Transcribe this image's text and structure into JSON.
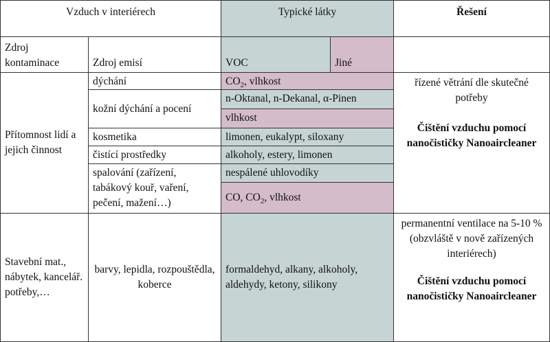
{
  "header": {
    "col1": "Vzduch v interiérech",
    "col2": "Typické látky",
    "col3": "Řešení"
  },
  "subheader": {
    "source_contamination": "Zdroj kontaminace",
    "source_emissions": "Zdroj emisí",
    "voc": "VOC",
    "other": "Jiné"
  },
  "group1": {
    "source": "Přítomnost lidí a jejich činnost",
    "rows": [
      {
        "emission": "dýchání",
        "substance_pre": "CO",
        "substance_sub": "2",
        "substance_post": ", vlhkost"
      },
      {
        "emission": "kožní dýchání a pocení",
        "substance_a": "n-Oktanal, n-Dekanal, α-Pinen",
        "substance_b": "vlhkost"
      },
      {
        "emission": "kosmetika",
        "substance": "limonen, eukalypt, siloxany"
      },
      {
        "emission": "čistící prostředky",
        "substance": "alkoholy, estery, limonen"
      },
      {
        "emission": "spalování (zařízení, tabákový kouř, vaření, pečení, mažení…)",
        "substance_a": "nespálené uhlovodíky",
        "substance_b_pre": "CO, CO",
        "substance_b_sub": "2",
        "substance_b_post": ", vlhkost"
      }
    ],
    "solution_text": "řízené větrání dle skutečné potřeby",
    "solution_bold": "Čištění vzduchu pomocí nanočističky Nanoaircleaner"
  },
  "group2": {
    "source": "Stavební mat., nábytek, kancelář. potřeby,…",
    "emission": "barvy, lepidla, rozpouštědla, koberce",
    "substance": "formaldehyd, alkany, alkoholy, aldehydy, ketony, silikony",
    "solution_text": "permanentní ventilace na 5-10 % (obzvláště v nově zařízených interiérech)",
    "solution_bold": "Čištění vzduchu pomocí nanočističky Nanoaircleaner"
  },
  "colors": {
    "voc_fill": "#c6d4d4",
    "other_fill": "#d4bccb",
    "border": "#333333"
  }
}
